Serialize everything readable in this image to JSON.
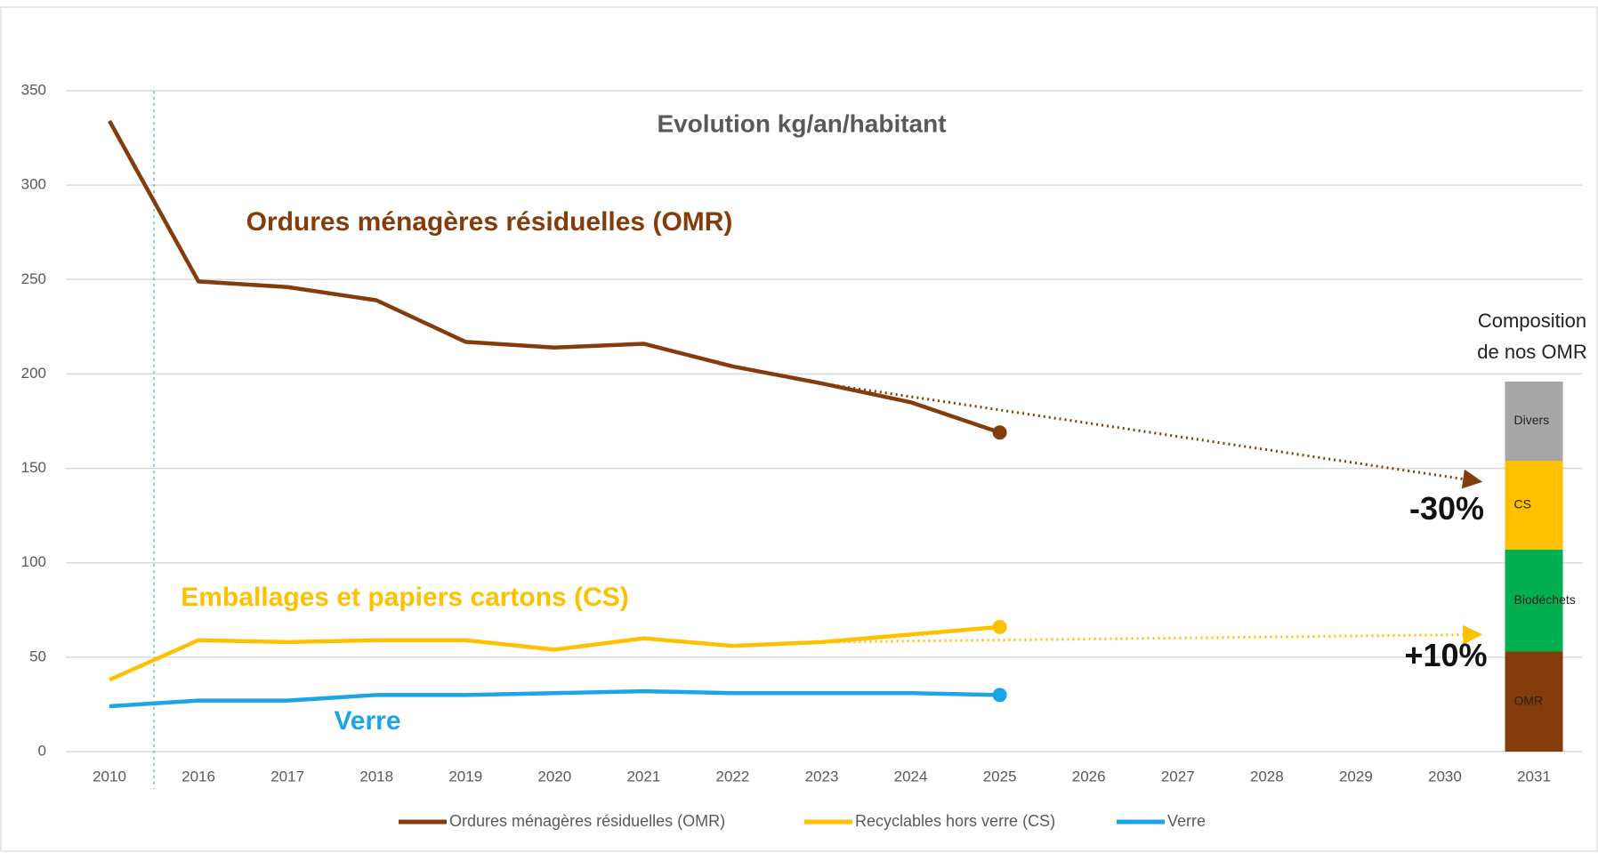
{
  "chart_data": {
    "type": "line",
    "title": "Evolution kg/an/habitant",
    "categories": [
      "2010",
      "2016",
      "2017",
      "2018",
      "2019",
      "2020",
      "2021",
      "2022",
      "2023",
      "2024",
      "2025",
      "2026",
      "2027",
      "2028",
      "2029",
      "2030",
      "2031"
    ],
    "series": [
      {
        "name": "Ordures ménagères résiduelles (OMR)",
        "color": "#843C0C",
        "values": [
          334,
          249,
          246,
          239,
          217,
          214,
          216,
          204,
          195,
          185,
          169,
          null,
          null,
          null,
          null,
          null,
          null
        ]
      },
      {
        "name": "Recyclables hors verre (CS)",
        "color": "#FFC000",
        "values": [
          38,
          59,
          58,
          59,
          59,
          54,
          60,
          56,
          58,
          62,
          66,
          null,
          null,
          null,
          null,
          null,
          null
        ]
      },
      {
        "name": "Verre",
        "color": "#1BA5E6",
        "values": [
          24,
          27,
          27,
          30,
          30,
          31,
          32,
          31,
          31,
          31,
          30,
          null,
          null,
          null,
          null,
          null,
          null
        ]
      }
    ],
    "ylim": [
      0,
      350
    ],
    "yticks": [
      0,
      50,
      100,
      150,
      200,
      250,
      300,
      350
    ],
    "grid": true,
    "legend": "bottom",
    "end_markers": true,
    "series_labels": [
      {
        "series": 0,
        "text": "Ordures ménagères résiduelles (OMR)"
      },
      {
        "series": 1,
        "text": "Emballages et papiers cartons (CS)"
      },
      {
        "series": 2,
        "text": "Verre"
      }
    ],
    "projections": [
      {
        "series": 0,
        "start_category": "2023",
        "start_value": 195,
        "end_category": "2030",
        "end_value": 143,
        "label": "-30%"
      },
      {
        "series": 1,
        "start_category": "2023",
        "start_value": 58,
        "end_category": "2030",
        "end_value": 62,
        "label": "+10%"
      }
    ],
    "stacked_bar": {
      "category": "2031",
      "title": [
        "Composition",
        "de nos OMR"
      ],
      "segments": [
        {
          "name": "OMR",
          "value": 53,
          "color": "#843C0C"
        },
        {
          "name": "Biodéchets",
          "value": 54,
          "color": "#00B050"
        },
        {
          "name": "CS",
          "value": 47,
          "color": "#FFC000"
        },
        {
          "name": "Divers",
          "value": 42,
          "color": "#A6A6A6"
        }
      ]
    }
  }
}
